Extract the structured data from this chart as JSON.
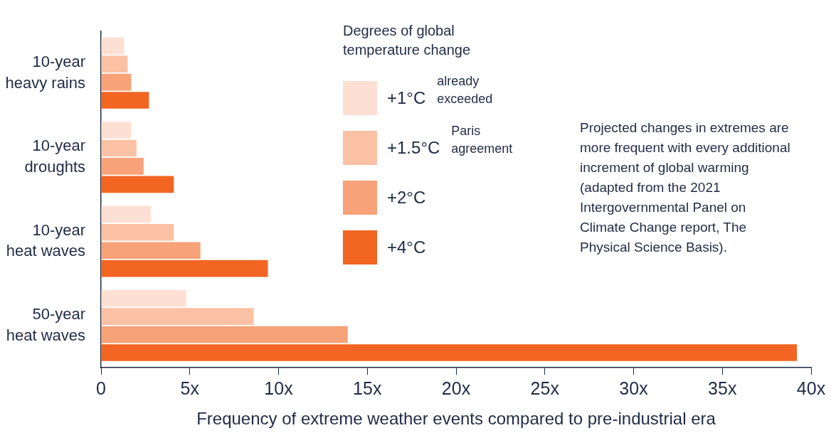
{
  "chart_data": {
    "type": "bar",
    "orientation": "horizontal",
    "legend": "top",
    "legend_title": "Degrees of global temperature change",
    "xlabel": "Frequency of extreme weather events compared to pre-industrial era",
    "categories": [
      "10-year heavy rains",
      "10-year droughts",
      "10-year heat waves",
      "50-year heat waves"
    ],
    "series": [
      {
        "name": "+1°C",
        "color": "#fde0d3",
        "values": [
          1.3,
          1.7,
          2.8,
          4.8
        ]
      },
      {
        "name": "+1.5°C",
        "color": "#fbc1a4",
        "values": [
          1.5,
          2.0,
          4.1,
          8.6
        ]
      },
      {
        "name": "+2°C",
        "color": "#f7a278",
        "values": [
          1.7,
          2.4,
          5.6,
          13.9
        ]
      },
      {
        "name": "+4°C",
        "color": "#f26522",
        "values": [
          2.7,
          4.1,
          9.4,
          39.2
        ]
      }
    ],
    "xlim": [
      0,
      40
    ],
    "xticks": [
      0,
      {
        "value": 5,
        "label": "5x"
      },
      {
        "value": 10,
        "label": "10x"
      },
      {
        "value": 15,
        "label": "15x"
      },
      {
        "value": 20,
        "label": "20x"
      },
      {
        "value": 25,
        "label": "25x"
      },
      {
        "value": 30,
        "label": "30x"
      },
      {
        "value": 35,
        "label": "35x"
      },
      {
        "value": 40,
        "label": "40x"
      }
    ],
    "annotations": [
      "already exceeded",
      "Paris agreement",
      "Projected changes in extremes are more frequent with every additional increment of global warming (adapted from the 2021 Intergovernmental Panel on Climate Change report, The Physical Science Basis)."
    ]
  }
}
